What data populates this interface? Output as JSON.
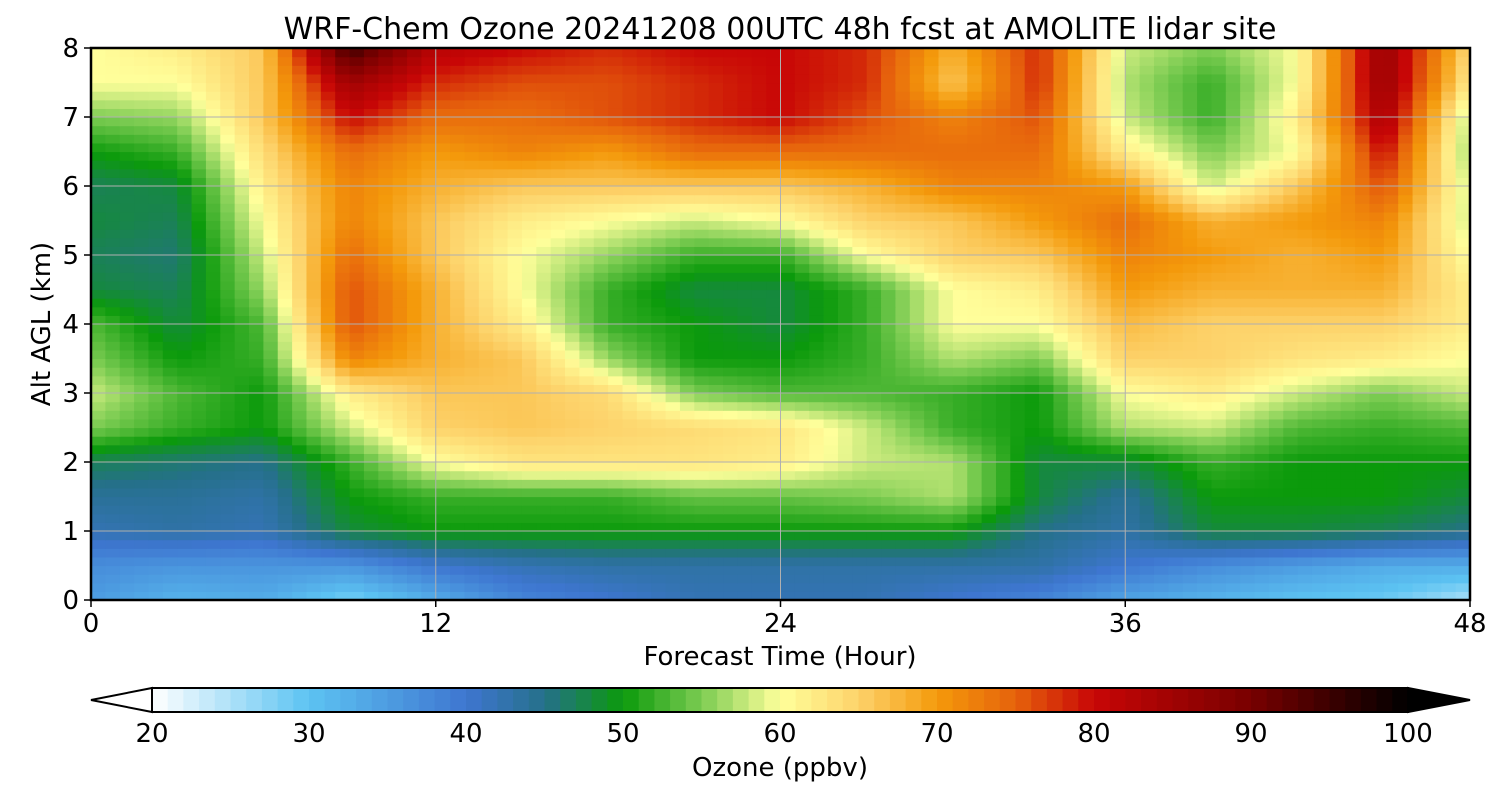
{
  "chart_data": {
    "type": "heatmap",
    "title": "WRF-Chem Ozone  20241208 00UTC 48h fcst at AMOLITE lidar site",
    "xlabel": "Forecast Time (Hour)",
    "ylabel": "Alt AGL (km)",
    "xlim": [
      0,
      48
    ],
    "ylim": [
      0,
      8
    ],
    "x_ticks": [
      0,
      12,
      24,
      36,
      48
    ],
    "y_ticks": [
      0,
      1,
      2,
      3,
      4,
      5,
      6,
      7,
      8
    ],
    "grid": true,
    "x": [
      0,
      3,
      6,
      9,
      12,
      15,
      18,
      21,
      24,
      27,
      30,
      33,
      36,
      39,
      42,
      45,
      48
    ],
    "y": [
      0,
      0.5,
      1,
      1.5,
      2,
      2.5,
      3,
      3.5,
      4,
      4.5,
      5,
      5.5,
      6,
      6.5,
      7,
      7.5,
      8
    ],
    "z": [
      [
        35,
        32,
        33,
        28,
        33,
        38,
        40,
        42,
        42,
        42,
        40,
        38,
        34,
        32,
        30,
        29,
        25
      ],
      [
        37,
        36,
        36,
        36,
        40,
        42,
        43,
        43,
        43,
        43,
        43,
        43,
        40,
        37,
        35,
        33,
        33
      ],
      [
        42,
        43,
        42,
        48,
        50,
        50,
        50,
        50,
        50,
        50,
        50,
        45,
        43,
        48,
        48,
        47,
        45
      ],
      [
        44,
        44,
        43,
        50,
        52,
        52,
        52,
        54,
        54,
        55,
        57,
        48,
        44,
        50,
        50,
        50,
        48
      ],
      [
        47,
        46,
        45,
        52,
        60,
        63,
        63,
        63,
        62,
        58,
        57,
        48,
        48,
        52,
        50,
        50,
        50
      ],
      [
        55,
        52,
        50,
        58,
        65,
        66,
        65,
        64,
        63,
        58,
        52,
        50,
        57,
        58,
        53,
        52,
        53
      ],
      [
        58,
        53,
        50,
        62,
        66,
        66,
        64,
        55,
        53,
        53,
        52,
        50,
        60,
        62,
        58,
        55,
        58
      ],
      [
        55,
        50,
        52,
        72,
        68,
        66,
        56,
        50,
        50,
        52,
        57,
        55,
        65,
        65,
        63,
        62,
        60
      ],
      [
        53,
        48,
        53,
        76,
        68,
        62,
        52,
        50,
        48,
        52,
        60,
        60,
        67,
        65,
        65,
        65,
        62
      ],
      [
        48,
        47,
        56,
        76,
        68,
        60,
        52,
        48,
        48,
        52,
        60,
        62,
        70,
        68,
        68,
        68,
        62
      ],
      [
        47,
        46,
        58,
        74,
        66,
        60,
        56,
        52,
        52,
        60,
        65,
        66,
        72,
        70,
        68,
        70,
        60
      ],
      [
        48,
        47,
        60,
        72,
        66,
        62,
        60,
        58,
        60,
        65,
        66,
        70,
        74,
        68,
        70,
        72,
        58
      ],
      [
        47,
        48,
        62,
        72,
        68,
        66,
        66,
        66,
        66,
        68,
        72,
        72,
        70,
        58,
        66,
        76,
        58
      ],
      [
        50,
        52,
        64,
        74,
        70,
        72,
        70,
        74,
        74,
        74,
        74,
        74,
        62,
        55,
        60,
        80,
        56
      ],
      [
        55,
        56,
        66,
        80,
        74,
        74,
        76,
        78,
        80,
        76,
        72,
        76,
        58,
        52,
        62,
        84,
        57
      ],
      [
        60,
        60,
        66,
        85,
        78,
        76,
        76,
        78,
        80,
        78,
        66,
        78,
        57,
        52,
        60,
        86,
        62
      ],
      [
        60,
        62,
        66,
        95,
        82,
        80,
        78,
        80,
        80,
        78,
        68,
        78,
        58,
        55,
        60,
        86,
        64
      ]
    ],
    "colorbar": {
      "label": "Ozone  (ppbv)",
      "min": 20,
      "max": 100,
      "ticks": [
        20,
        30,
        40,
        50,
        60,
        70,
        80,
        90,
        100
      ],
      "extend": "both",
      "stops": [
        {
          "v": 20,
          "c": "#ffffff"
        },
        {
          "v": 30,
          "c": "#5cc3f2"
        },
        {
          "v": 40,
          "c": "#3e76d0"
        },
        {
          "v": 45,
          "c": "#25708a"
        },
        {
          "v": 50,
          "c": "#0b9a0b"
        },
        {
          "v": 55,
          "c": "#7ccc52"
        },
        {
          "v": 60,
          "c": "#ffff9b"
        },
        {
          "v": 65,
          "c": "#fdd26a"
        },
        {
          "v": 70,
          "c": "#f49a0b"
        },
        {
          "v": 75,
          "c": "#e6620c"
        },
        {
          "v": 80,
          "c": "#c80606"
        },
        {
          "v": 90,
          "c": "#780000"
        },
        {
          "v": 100,
          "c": "#000000"
        }
      ]
    }
  }
}
